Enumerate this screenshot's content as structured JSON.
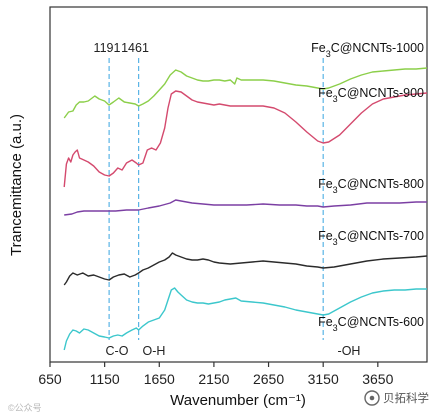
{
  "chart_data": {
    "type": "line",
    "xlabel": "Wavenumber (cm⁻¹)",
    "ylabel": "Trancemittance (a.u.)",
    "xlim": [
      650,
      4100
    ],
    "xticks": [
      650,
      1150,
      1650,
      2150,
      2650,
      3150,
      3650
    ],
    "grid": false,
    "legend": "labels next to each curve on the right",
    "series": [
      {
        "name": "Fe3C@NCNTs-1000",
        "name_base": "Fe",
        "name_sub": "3",
        "name_rest": "C@NCNTs-1000",
        "color": "#8ccf4a",
        "points": [
          [
            780,
            118
          ],
          [
            820,
            112
          ],
          [
            860,
            111
          ],
          [
            890,
            105
          ],
          [
            920,
            102
          ],
          [
            960,
            102
          ],
          [
            1000,
            101
          ],
          [
            1060,
            96
          ],
          [
            1100,
            99
          ],
          [
            1150,
            101
          ],
          [
            1190,
            105
          ],
          [
            1230,
            102
          ],
          [
            1280,
            98
          ],
          [
            1330,
            102
          ],
          [
            1380,
            103
          ],
          [
            1430,
            104
          ],
          [
            1461,
            106
          ],
          [
            1500,
            104
          ],
          [
            1550,
            101
          ],
          [
            1600,
            96
          ],
          [
            1650,
            90
          ],
          [
            1700,
            84
          ],
          [
            1750,
            75
          ],
          [
            1800,
            70
          ],
          [
            1850,
            72
          ],
          [
            1900,
            76
          ],
          [
            1950,
            78
          ],
          [
            2000,
            80
          ],
          [
            2050,
            81
          ],
          [
            2100,
            81
          ],
          [
            2150,
            80
          ],
          [
            2200,
            80
          ],
          [
            2250,
            81
          ],
          [
            2300,
            80
          ],
          [
            2340,
            84
          ],
          [
            2360,
            78
          ],
          [
            2400,
            80
          ],
          [
            2500,
            80
          ],
          [
            2600,
            80
          ],
          [
            2700,
            81
          ],
          [
            2800,
            83
          ],
          [
            2900,
            85
          ],
          [
            3000,
            86
          ],
          [
            3100,
            88
          ],
          [
            3150,
            89
          ],
          [
            3200,
            88
          ],
          [
            3300,
            84
          ],
          [
            3400,
            79
          ],
          [
            3500,
            75
          ],
          [
            3600,
            72
          ],
          [
            3700,
            71
          ],
          [
            3800,
            70
          ],
          [
            3900,
            69
          ],
          [
            4000,
            69
          ],
          [
            4100,
            68
          ]
        ]
      },
      {
        "name": "Fe3C@NCNTs-900",
        "name_base": "Fe",
        "name_sub": "3",
        "name_rest": "C@NCNTs-900",
        "color": "#d44a6e",
        "points": [
          [
            780,
            187
          ],
          [
            800,
            164
          ],
          [
            820,
            158
          ],
          [
            840,
            162
          ],
          [
            860,
            155
          ],
          [
            880,
            152
          ],
          [
            900,
            150
          ],
          [
            920,
            158
          ],
          [
            960,
            160
          ],
          [
            1000,
            162
          ],
          [
            1050,
            166
          ],
          [
            1100,
            172
          ],
          [
            1150,
            175
          ],
          [
            1191,
            176
          ],
          [
            1230,
            173
          ],
          [
            1270,
            168
          ],
          [
            1310,
            170
          ],
          [
            1350,
            163
          ],
          [
            1400,
            160
          ],
          [
            1440,
            163
          ],
          [
            1461,
            165
          ],
          [
            1500,
            163
          ],
          [
            1540,
            150
          ],
          [
            1580,
            148
          ],
          [
            1620,
            150
          ],
          [
            1660,
            143
          ],
          [
            1700,
            128
          ],
          [
            1730,
            108
          ],
          [
            1760,
            94
          ],
          [
            1800,
            91
          ],
          [
            1850,
            92
          ],
          [
            1900,
            96
          ],
          [
            1950,
            100
          ],
          [
            2000,
            102
          ],
          [
            2050,
            103
          ],
          [
            2100,
            104
          ],
          [
            2150,
            105
          ],
          [
            2200,
            104
          ],
          [
            2250,
            105
          ],
          [
            2300,
            106
          ],
          [
            2350,
            106
          ],
          [
            2400,
            106
          ],
          [
            2500,
            106
          ],
          [
            2600,
            106
          ],
          [
            2700,
            108
          ],
          [
            2800,
            113
          ],
          [
            2900,
            122
          ],
          [
            3000,
            132
          ],
          [
            3100,
            141
          ],
          [
            3150,
            143
          ],
          [
            3200,
            142
          ],
          [
            3300,
            135
          ],
          [
            3400,
            124
          ],
          [
            3500,
            113
          ],
          [
            3600,
            104
          ],
          [
            3700,
            99
          ],
          [
            3800,
            97
          ],
          [
            3900,
            95
          ],
          [
            4000,
            94
          ],
          [
            4100,
            93
          ]
        ]
      },
      {
        "name": "Fe3C@NCNTs-800",
        "name_base": "Fe",
        "name_sub": "3",
        "name_rest": "C@NCNTs-800",
        "color": "#7b3fa3",
        "points": [
          [
            780,
            215
          ],
          [
            850,
            214
          ],
          [
            900,
            212
          ],
          [
            960,
            211
          ],
          [
            1050,
            211
          ],
          [
            1150,
            211
          ],
          [
            1250,
            211
          ],
          [
            1350,
            210
          ],
          [
            1461,
            210
          ],
          [
            1550,
            208
          ],
          [
            1650,
            206
          ],
          [
            1750,
            203
          ],
          [
            1800,
            200
          ],
          [
            1850,
            201
          ],
          [
            1950,
            203
          ],
          [
            2050,
            204
          ],
          [
            2150,
            205
          ],
          [
            2300,
            205
          ],
          [
            2450,
            205
          ],
          [
            2600,
            204
          ],
          [
            2750,
            205
          ],
          [
            2900,
            205
          ],
          [
            3000,
            206
          ],
          [
            3100,
            206
          ],
          [
            3150,
            207
          ],
          [
            3250,
            206
          ],
          [
            3400,
            205
          ],
          [
            3550,
            203
          ],
          [
            3700,
            203
          ],
          [
            3850,
            203
          ],
          [
            4000,
            202
          ],
          [
            4100,
            202
          ]
        ]
      },
      {
        "name": "Fe3C@NCNTs-700",
        "name_base": "Fe",
        "name_sub": "3",
        "name_rest": "C@NCNTs-700",
        "color": "#2b2b2b",
        "points": [
          [
            780,
            285
          ],
          [
            800,
            282
          ],
          [
            830,
            276
          ],
          [
            860,
            273
          ],
          [
            900,
            275
          ],
          [
            950,
            273
          ],
          [
            1000,
            276
          ],
          [
            1050,
            275
          ],
          [
            1100,
            277
          ],
          [
            1150,
            279
          ],
          [
            1191,
            280
          ],
          [
            1230,
            277
          ],
          [
            1280,
            275
          ],
          [
            1330,
            274
          ],
          [
            1380,
            277
          ],
          [
            1430,
            275
          ],
          [
            1461,
            273
          ],
          [
            1500,
            270
          ],
          [
            1550,
            268
          ],
          [
            1600,
            265
          ],
          [
            1650,
            262
          ],
          [
            1700,
            260
          ],
          [
            1740,
            257
          ],
          [
            1770,
            253
          ],
          [
            1800,
            255
          ],
          [
            1850,
            257
          ],
          [
            1900,
            259
          ],
          [
            1950,
            260
          ],
          [
            2000,
            260
          ],
          [
            2050,
            259
          ],
          [
            2100,
            260
          ],
          [
            2150,
            262
          ],
          [
            2200,
            263
          ],
          [
            2300,
            264
          ],
          [
            2400,
            263
          ],
          [
            2500,
            262
          ],
          [
            2600,
            261
          ],
          [
            2700,
            262
          ],
          [
            2800,
            263
          ],
          [
            2900,
            264
          ],
          [
            3000,
            266
          ],
          [
            3100,
            267
          ],
          [
            3150,
            268
          ],
          [
            3250,
            267
          ],
          [
            3400,
            264
          ],
          [
            3550,
            261
          ],
          [
            3700,
            259
          ],
          [
            3850,
            258
          ],
          [
            4000,
            257
          ],
          [
            4100,
            256
          ]
        ]
      },
      {
        "name": "Fe3C@NCNTs-600",
        "name_base": "Fe",
        "name_sub": "3",
        "name_rest": "C@NCNTs-600",
        "color": "#3cc7cc",
        "points": [
          [
            780,
            350
          ],
          [
            800,
            341
          ],
          [
            830,
            334
          ],
          [
            860,
            330
          ],
          [
            890,
            331
          ],
          [
            920,
            333
          ],
          [
            960,
            329
          ],
          [
            1000,
            330
          ],
          [
            1050,
            333
          ],
          [
            1100,
            336
          ],
          [
            1150,
            337
          ],
          [
            1191,
            338
          ],
          [
            1230,
            336
          ],
          [
            1270,
            335
          ],
          [
            1310,
            336
          ],
          [
            1350,
            333
          ],
          [
            1400,
            330
          ],
          [
            1440,
            328
          ],
          [
            1461,
            330
          ],
          [
            1500,
            326
          ],
          [
            1550,
            322
          ],
          [
            1600,
            320
          ],
          [
            1650,
            318
          ],
          [
            1700,
            310
          ],
          [
            1730,
            300
          ],
          [
            1760,
            290
          ],
          [
            1790,
            288
          ],
          [
            1820,
            292
          ],
          [
            1850,
            295
          ],
          [
            1900,
            300
          ],
          [
            1950,
            302
          ],
          [
            2000,
            303
          ],
          [
            2050,
            303
          ],
          [
            2100,
            304
          ],
          [
            2150,
            303
          ],
          [
            2200,
            302
          ],
          [
            2250,
            300
          ],
          [
            2300,
            299
          ],
          [
            2350,
            298
          ],
          [
            2400,
            301
          ],
          [
            2500,
            302
          ],
          [
            2600,
            303
          ],
          [
            2700,
            305
          ],
          [
            2800,
            307
          ],
          [
            2900,
            310
          ],
          [
            3000,
            312
          ],
          [
            3100,
            314
          ],
          [
            3150,
            315
          ],
          [
            3200,
            314
          ],
          [
            3300,
            308
          ],
          [
            3400,
            302
          ],
          [
            3500,
            297
          ],
          [
            3600,
            293
          ],
          [
            3700,
            291
          ],
          [
            3800,
            290
          ],
          [
            3900,
            290
          ],
          [
            4000,
            289
          ],
          [
            4100,
            289
          ]
        ]
      }
    ],
    "markers": [
      {
        "x": 1191,
        "label": "1191",
        "color": "#59b4e6"
      },
      {
        "x": 1461,
        "label": "1461",
        "color": "#59b4e6"
      },
      {
        "x": 3150,
        "label": "",
        "color": "#59b4e6"
      }
    ],
    "annotations": {
      "co": "C-O",
      "oh": "O-H",
      "minus_oh": "-OH"
    }
  },
  "watermark": "©公众号",
  "brand": "贝拓科学"
}
